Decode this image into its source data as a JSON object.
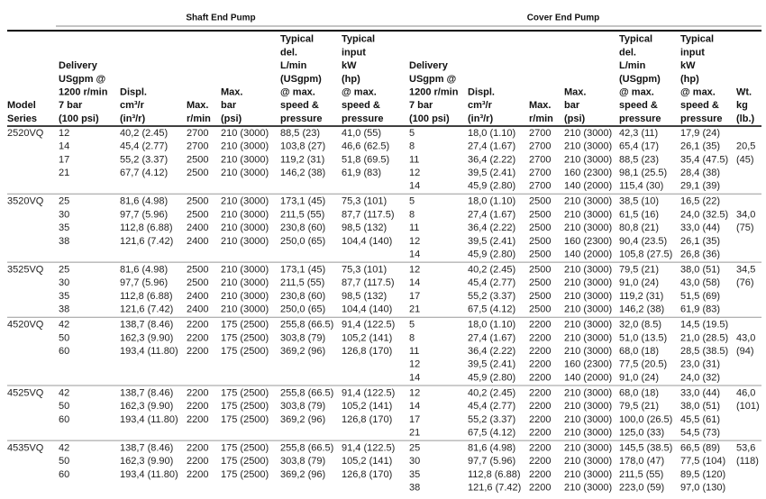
{
  "header": {
    "shaft_title": "Shaft End Pump",
    "cover_title": "Cover End Pump"
  },
  "columns": {
    "model": [
      "Model",
      "Series"
    ],
    "shaft": [
      [
        "Delivery",
        "USgpm @",
        "1200 r/min",
        "7 bar",
        "(100 psi)"
      ],
      [
        "Displ.",
        "cm³/r",
        "(in³/r)"
      ],
      [
        "Max.",
        "r/min"
      ],
      [
        "Max.",
        "bar",
        "(psi)"
      ],
      [
        "Typical",
        "del.",
        "L/min",
        "(USgpm)",
        "@ max.",
        "speed &",
        "pressure"
      ],
      [
        "Typical",
        "input",
        "kW",
        "(hp)",
        "@ max.",
        "speed &",
        "pressure"
      ]
    ],
    "cover": [
      [
        "Delivery",
        "USgpm @",
        "1200 r/min",
        "7 bar",
        "(100 psi)"
      ],
      [
        "Displ.",
        "cm³/r",
        "(in³/r)"
      ],
      [
        "Max.",
        "r/min"
      ],
      [
        "Max.",
        "bar",
        "(psi)"
      ],
      [
        "Typical",
        "del.",
        "L/min",
        "(USgpm)",
        "@ max.",
        "speed &",
        "pressure"
      ],
      [
        "Typical",
        "input",
        "kW",
        "(hp)",
        "@ max.",
        "speed &",
        "pressure"
      ]
    ],
    "weight": [
      "Wt.",
      "kg",
      "(lb.)"
    ]
  },
  "groups": [
    {
      "model": "2520VQ",
      "shaft_rows": [
        [
          "12",
          "40,2 (2.45)",
          "2700",
          "210 (3000)",
          "88,5 (23)",
          "41,0 (55)"
        ],
        [
          "14",
          "45,4 (2.77)",
          "2700",
          "210 (3000)",
          "103,8 (27)",
          "46,6 (62.5)"
        ],
        [
          "17",
          "55,2 (3.37)",
          "2500",
          "210 (3000)",
          "119,2 (31)",
          "51,8 (69.5)"
        ],
        [
          "21",
          "67,7 (4.12)",
          "2500",
          "210 (3000)",
          "146,2 (38)",
          "61,9 (83)"
        ]
      ],
      "cover_rows": [
        [
          "5",
          "18,0 (1.10)",
          "2700",
          "210 (3000)",
          "42,3 (11)",
          "17,9 (24)"
        ],
        [
          "8",
          "27,4 (1.67)",
          "2700",
          "210 (3000)",
          "65,4 (17)",
          "26,1 (35)"
        ],
        [
          "11",
          "36,4 (2.22)",
          "2700",
          "210 (3000)",
          "88,5 (23)",
          "35,4 (47.5)"
        ],
        [
          "12",
          "39,5 (2.41)",
          "2700",
          "160 (2300)",
          "98,1 (25.5)",
          "28,4 (38)"
        ],
        [
          "14",
          "45,9 (2.80)",
          "2700",
          "140 (2000)",
          "115,4 (30)",
          "29,1 (39)"
        ]
      ],
      "weight": [
        "20,5",
        "(45)"
      ]
    },
    {
      "model": "3520VQ",
      "shaft_rows": [
        [
          "25",
          "81,6 (4.98)",
          "2500",
          "210 (3000)",
          "173,1 (45)",
          "75,3 (101)"
        ],
        [
          "30",
          "97,7 (5.96)",
          "2500",
          "210 (3000)",
          "211,5 (55)",
          "87,7 (117.5)"
        ],
        [
          "35",
          "112,8 (6.88)",
          "2400",
          "210 (3000)",
          "230,8 (60)",
          "98,5 (132)"
        ],
        [
          "38",
          "121,6 (7.42)",
          "2400",
          "210 (3000)",
          "250,0 (65)",
          "104,4 (140)"
        ]
      ],
      "cover_rows": [
        [
          "5",
          "18,0 (1.10)",
          "2500",
          "210 (3000)",
          "38,5 (10)",
          "16,5 (22)"
        ],
        [
          "8",
          "27,4 (1.67)",
          "2500",
          "210 (3000)",
          "61,5 (16)",
          "24,0 (32.5)"
        ],
        [
          "11",
          "36,4 (2.22)",
          "2500",
          "210 (3000)",
          "80,8 (21)",
          "33,0 (44)"
        ],
        [
          "12",
          "39,5 (2.41)",
          "2500",
          "160 (2300)",
          "90,4 (23.5)",
          "26,1 (35)"
        ],
        [
          "14",
          "45,9 (2.80)",
          "2500",
          "140 (2000)",
          "105,8 (27.5)",
          "26,8 (36)"
        ]
      ],
      "weight": [
        "34,0",
        "(75)"
      ]
    },
    {
      "model": "3525VQ",
      "shaft_rows": [
        [
          "25",
          "81,6 (4.98)",
          "2500",
          "210 (3000)",
          "173,1 (45)",
          "75,3 (101)"
        ],
        [
          "30",
          "97,7 (5.96)",
          "2500",
          "210 (3000)",
          "211,5 (55)",
          "87,7 (117.5)"
        ],
        [
          "35",
          "112,8 (6.88)",
          "2400",
          "210 (3000)",
          "230,8 (60)",
          "98,5 (132)"
        ],
        [
          "38",
          "121,6 (7.42)",
          "2400",
          "210 (3000)",
          "250,0 (65)",
          "104,4 (140)"
        ]
      ],
      "cover_rows": [
        [
          "12",
          "40,2 (2.45)",
          "2500",
          "210 (3000)",
          "79,5 (21)",
          "38,0 (51)"
        ],
        [
          "14",
          "45,4 (2.77)",
          "2500",
          "210 (3000)",
          "91,0 (24)",
          "43,0 (58)"
        ],
        [
          "17",
          "55,2 (3.37)",
          "2500",
          "210 (3000)",
          "119,2 (31)",
          "51,5 (69)"
        ],
        [
          "21",
          "67,5 (4.12)",
          "2500",
          "210 (3000)",
          "146,2 (38)",
          "61,9 (83)"
        ]
      ],
      "weight": [
        "34,5",
        "(76)"
      ]
    },
    {
      "model": "4520VQ",
      "shaft_rows": [
        [
          "42",
          "138,7 (8.46)",
          "2200",
          "175 (2500)",
          "255,8 (66.5)",
          "91,4 (122.5)"
        ],
        [
          "50",
          "162,3 (9.90)",
          "2200",
          "175 (2500)",
          "303,8 (79)",
          "105,2 (141)"
        ],
        [
          "60",
          "193,4 (11.80)",
          "2200",
          "175 (2500)",
          "369,2 (96)",
          "126,8 (170)"
        ]
      ],
      "cover_rows": [
        [
          "5",
          "18,0 (1.10)",
          "2200",
          "210 (3000)",
          "32,0 (8.5)",
          "14,5 (19.5)"
        ],
        [
          "8",
          "27,4 (1.67)",
          "2200",
          "210 (3000)",
          "51,0 (13.5)",
          "21,0 (28.5)"
        ],
        [
          "11",
          "36,4 (2.22)",
          "2200",
          "210 (3000)",
          "68,0 (18)",
          "28,5 (38.5)"
        ],
        [
          "12",
          "39,5 (2.41)",
          "2200",
          "160 (2300)",
          "77,5 (20.5)",
          "23,0 (31)"
        ],
        [
          "14",
          "45,9 (2.80)",
          "2200",
          "140 (2000)",
          "91,0 (24)",
          "24,0 (32)"
        ]
      ],
      "weight": [
        "43,0",
        "(94)"
      ]
    },
    {
      "model": "4525VQ",
      "shaft_rows": [
        [
          "42",
          "138,7 (8.46)",
          "2200",
          "175 (2500)",
          "255,8 (66.5)",
          "91,4 (122.5)"
        ],
        [
          "50",
          "162,3 (9.90)",
          "2200",
          "175 (2500)",
          "303,8 (79)",
          "105,2 (141)"
        ],
        [
          "60",
          "193,4 (11.80)",
          "2200",
          "175 (2500)",
          "369,2 (96)",
          "126,8 (170)"
        ]
      ],
      "cover_rows": [
        [
          "12",
          "40,2 (2.45)",
          "2200",
          "210 (3000)",
          "68,0 (18)",
          "33,0 (44)"
        ],
        [
          "14",
          "45,4 (2.77)",
          "2200",
          "210 (3000)",
          "79,5 (21)",
          "38,0 (51)"
        ],
        [
          "17",
          "55,2 (3.37)",
          "2200",
          "210 (3000)",
          "100,0 (26.5)",
          "45,5 (61)"
        ],
        [
          "21",
          "67,5 (4.12)",
          "2200",
          "210 (3000)",
          "125,0 (33)",
          "54,5 (73)"
        ]
      ],
      "weight": [
        "46,0",
        "(101)"
      ]
    },
    {
      "model": "4535VQ",
      "shaft_rows": [
        [
          "42",
          "138,7 (8.46)",
          "2200",
          "175 (2500)",
          "255,8 (66.5)",
          "91,4 (122.5)"
        ],
        [
          "50",
          "162,3 (9.90)",
          "2200",
          "175 (2500)",
          "303,8 (79)",
          "105,2 (141)"
        ],
        [
          "60",
          "193,4 (11.80)",
          "2200",
          "175 (2500)",
          "369,2 (96)",
          "126,8 (170)"
        ]
      ],
      "cover_rows": [
        [
          "25",
          "81,6 (4.98)",
          "2200",
          "210 (3000)",
          "145,5 (38.5)",
          "66,5 (89)"
        ],
        [
          "30",
          "97,7 (5.96)",
          "2200",
          "210 (3000)",
          "178,0 (47)",
          "77,5 (104)"
        ],
        [
          "35",
          "112,8 (6.88)",
          "2200",
          "210 (3000)",
          "211,5 (55)",
          "89,5 (120)"
        ],
        [
          "38",
          "121,6 (7.42)",
          "2200",
          "210 (3000)",
          "223,0 (59)",
          "97,0 (130)"
        ]
      ],
      "weight": [
        "53,6",
        "(118)"
      ]
    }
  ]
}
